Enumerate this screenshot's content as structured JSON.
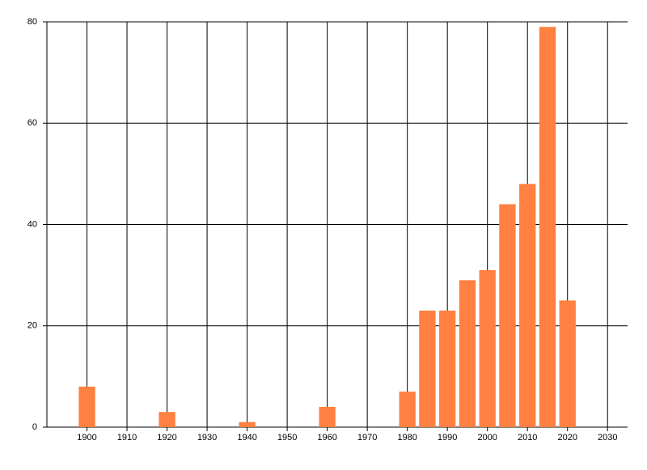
{
  "chart_data": {
    "type": "bar",
    "x": [
      1900,
      1920,
      1940,
      1960,
      1980,
      1985,
      1990,
      1995,
      2000,
      2005,
      2010,
      2015,
      2020
    ],
    "values": [
      8,
      3,
      1,
      4,
      7,
      23,
      23,
      29,
      31,
      44,
      48,
      79,
      25
    ],
    "color": "#ff8040",
    "xlim": [
      1890,
      2035
    ],
    "xticks": [
      1900,
      1910,
      1920,
      1930,
      1940,
      1950,
      1960,
      1970,
      1980,
      1990,
      2000,
      2010,
      2020,
      2030
    ],
    "ylim": [
      0,
      80
    ],
    "yticks": [
      0,
      20,
      40,
      60,
      80
    ],
    "grid": true
  }
}
